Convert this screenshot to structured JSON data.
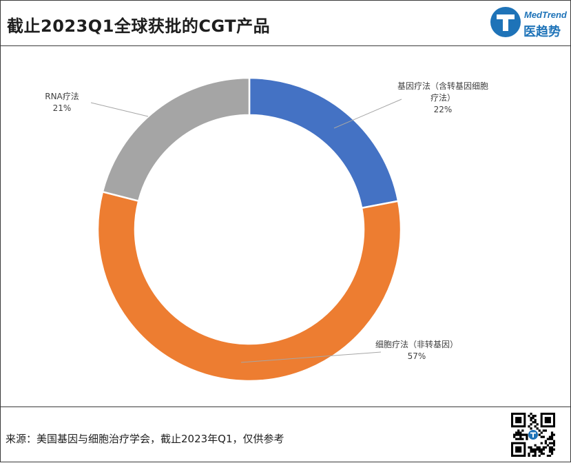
{
  "header": {
    "title": "截止2023Q1全球获批的CGT产品",
    "logo_en": "MedTrend",
    "logo_cn": "医趋势",
    "logo_letter": "T"
  },
  "chart_data": {
    "type": "pie",
    "donut": true,
    "title": "截止2023Q1全球获批的CGT产品",
    "slices": [
      {
        "label_lines": [
          "基因疗法（含转基因细胞",
          "疗法）"
        ],
        "value_label": "22%",
        "value": 22,
        "color": "#4472C4"
      },
      {
        "label_lines": [
          "细胞疗法（非转基因）"
        ],
        "value_label": "57%",
        "value": 57,
        "color": "#ED7D31"
      },
      {
        "label_lines": [
          "RNA疗法"
        ],
        "value_label": "21%",
        "value": 21,
        "color": "#A5A5A5"
      }
    ],
    "start": "12 o'clock",
    "direction": "clockwise",
    "legend": "none"
  },
  "footer": {
    "source": "来源：美国基因与细胞治疗学会，截止2023年Q1，仅供参考"
  }
}
